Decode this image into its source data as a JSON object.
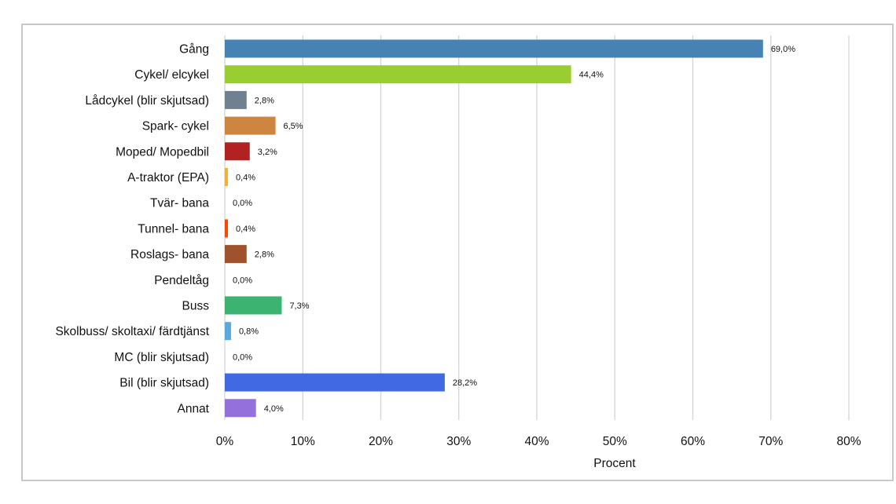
{
  "chart_data": {
    "type": "bar",
    "orientation": "horizontal",
    "title": "",
    "xlabel": "Procent",
    "ylabel": "",
    "xlim": [
      0,
      80
    ],
    "x_ticks": [
      0,
      10,
      20,
      30,
      40,
      50,
      60,
      70,
      80
    ],
    "x_tick_labels": [
      "0%",
      "10%",
      "20%",
      "30%",
      "40%",
      "50%",
      "60%",
      "70%",
      "80%"
    ],
    "grid": true,
    "legend": false,
    "categories": [
      "Gång",
      "Cykel/ elcykel",
      "Lådcykel (blir skjutsad)",
      "Spark- cykel",
      "Moped/ Mopedbil",
      "A-traktor (EPA)",
      "Tvär- bana",
      "Tunnel- bana",
      "Roslags- bana",
      "Pendeltåg",
      "Buss",
      "Skolbuss/ skoltaxi/ färdtjänst",
      "MC (blir skjutsad)",
      "Bil (blir skjutsad)",
      "Annat"
    ],
    "values": [
      69.0,
      44.4,
      2.8,
      6.5,
      3.2,
      0.4,
      0.0,
      0.4,
      2.8,
      0.0,
      7.3,
      0.8,
      0.0,
      28.2,
      4.0
    ],
    "value_labels": [
      "69,0%",
      "44,4%",
      "2,8%",
      "6,5%",
      "3,2%",
      "0,4%",
      "0,0%",
      "0,4%",
      "2,8%",
      "0,0%",
      "7,3%",
      "0,8%",
      "0,0%",
      "28,2%",
      "4,0%"
    ],
    "colors": [
      "#4682b4",
      "#9acd32",
      "#708090",
      "#cd853f",
      "#b22222",
      "#f0b030",
      "#cccccc",
      "#ff4500",
      "#a0522d",
      "#cccccc",
      "#3cb371",
      "#5aa9dc",
      "#cccccc",
      "#4169e1",
      "#9370db"
    ]
  }
}
